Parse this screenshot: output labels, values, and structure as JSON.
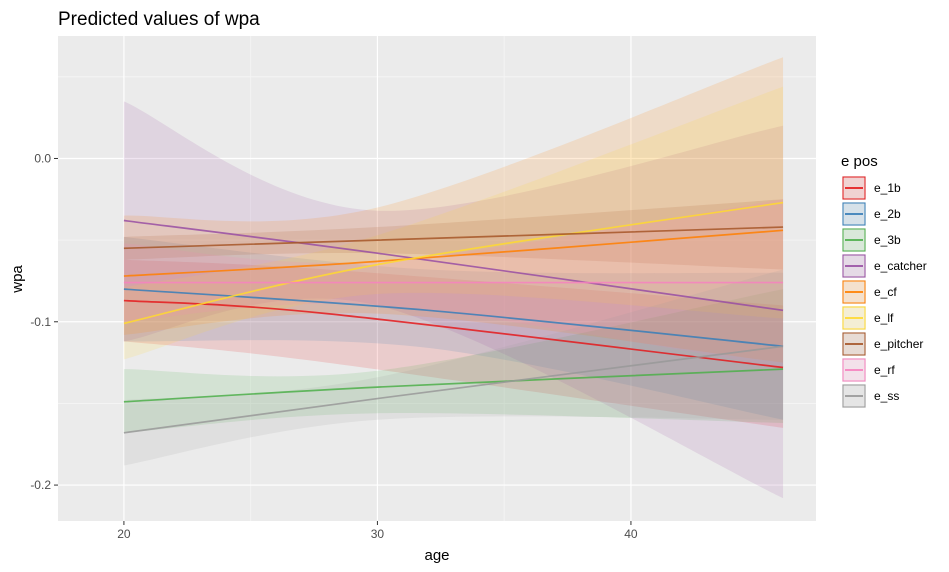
{
  "chart_data": {
    "type": "line",
    "title": "Predicted values of wpa",
    "xlabel": "age",
    "ylabel": "wpa",
    "xlim": [
      17.4,
      47.3
    ],
    "ylim": [
      -0.222,
      0.075
    ],
    "x_ticks": [
      20,
      30,
      40
    ],
    "x_tick_labels": [
      "20",
      "30",
      "40"
    ],
    "y_ticks": [
      0.0,
      -0.1,
      -0.2
    ],
    "y_tick_labels": [
      "0.0",
      "-0.1",
      "-0.2"
    ],
    "grid": true,
    "legend": {
      "title": "e pos",
      "position": "right"
    },
    "series": [
      {
        "name": "e_1b",
        "color": "#E41A1C",
        "x": [
          20,
          28,
          46
        ],
        "y": [
          -0.087,
          -0.095,
          -0.128
        ],
        "lower": [
          -0.112,
          -0.125,
          -0.165
        ],
        "upper": [
          -0.062,
          -0.068,
          -0.09
        ]
      },
      {
        "name": "e_2b",
        "color": "#377EB8",
        "x": [
          20,
          32,
          46
        ],
        "y": [
          -0.08,
          -0.093,
          -0.115
        ],
        "lower": [
          -0.112,
          -0.116,
          -0.16
        ],
        "upper": [
          -0.048,
          -0.068,
          -0.07
        ]
      },
      {
        "name": "e_3b",
        "color": "#4DAF4A",
        "x": [
          20,
          30,
          46
        ],
        "y": [
          -0.149,
          -0.14,
          -0.129
        ],
        "lower": [
          -0.168,
          -0.156,
          -0.162
        ],
        "upper": [
          -0.129,
          -0.13,
          -0.08
        ]
      },
      {
        "name": "e_catcher",
        "color": "#984EA3",
        "x": [
          20,
          30,
          46
        ],
        "y": [
          -0.038,
          -0.058,
          -0.093
        ],
        "lower": [
          -0.112,
          -0.09,
          -0.208
        ],
        "upper": [
          0.035,
          -0.032,
          0.02
        ]
      },
      {
        "name": "e_cf",
        "color": "#FF7F00",
        "x": [
          20,
          30,
          46
        ],
        "y": [
          -0.072,
          -0.063,
          -0.044
        ],
        "lower": [
          -0.108,
          -0.095,
          -0.125
        ],
        "upper": [
          -0.035,
          -0.03,
          0.062
        ]
      },
      {
        "name": "e_lf",
        "color": "#FFD92F",
        "x": [
          20,
          30,
          46
        ],
        "y": [
          -0.101,
          -0.065,
          -0.027
        ],
        "lower": [
          -0.123,
          -0.083,
          -0.098
        ],
        "upper": [
          -0.079,
          -0.047,
          0.044
        ]
      },
      {
        "name": "e_pitcher",
        "color": "#A65628",
        "x": [
          20,
          30,
          46
        ],
        "y": [
          -0.055,
          -0.05,
          -0.042
        ],
        "lower": [
          -0.062,
          -0.058,
          -0.068
        ],
        "upper": [
          -0.048,
          -0.042,
          -0.025
        ]
      },
      {
        "name": "e_rf",
        "color": "#F781BF",
        "x": [
          20,
          30,
          46
        ],
        "y": [
          -0.076,
          -0.076,
          -0.076
        ],
        "lower": [
          -0.1,
          -0.09,
          -0.128
        ],
        "upper": [
          -0.052,
          -0.063,
          -0.025
        ]
      },
      {
        "name": "e_ss",
        "color": "#999999",
        "x": [
          20,
          30,
          46
        ],
        "y": [
          -0.168,
          -0.147,
          -0.115
        ],
        "lower": [
          -0.188,
          -0.16,
          -0.16
        ],
        "upper": [
          -0.148,
          -0.134,
          -0.068
        ]
      }
    ]
  }
}
